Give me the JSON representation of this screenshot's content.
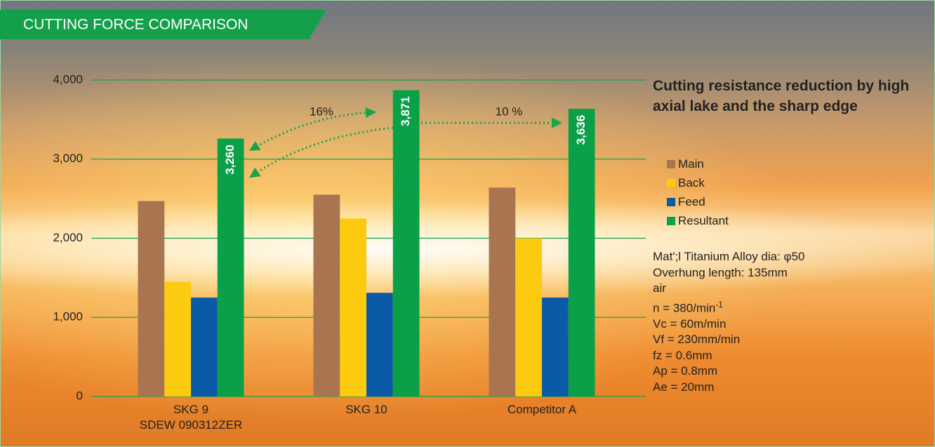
{
  "chart_data": {
    "type": "bar",
    "title": "CUTTING FORCE COMPARISON",
    "categories": [
      "SKG 9\nSDEW 090312ZER",
      "SKG 10",
      "Competitor A"
    ],
    "series": [
      {
        "name": "Main",
        "color": "#a87550",
        "values": [
          2470,
          2550,
          2640
        ]
      },
      {
        "name": "Back",
        "color": "#fccb10",
        "values": [
          1450,
          2250,
          2000
        ]
      },
      {
        "name": "Feed",
        "color": "#0b5aa8",
        "values": [
          1250,
          1310,
          1250
        ]
      },
      {
        "name": "Resultant",
        "color": "#0aa048",
        "values": [
          3260,
          3871,
          3636
        ],
        "value_labels": [
          "3,260",
          "3,871",
          "3,636"
        ]
      }
    ],
    "ylim": [
      0,
      4000
    ],
    "yticks": [
      0,
      {
        "value": 1000,
        "label": "1,000"
      },
      {
        "value": 2000,
        "label": "2,000"
      },
      {
        "value": 3000,
        "label": "3,000"
      },
      {
        "value": 4000,
        "label": "4,000"
      }
    ],
    "grid": true,
    "annotations": [
      "16%",
      "10 %"
    ],
    "legend_title": "Cutting resistance reduction by high axial lake and the sharp edge",
    "notes": [
      {
        "text": "Mat';l Titanium Alloy dia: φ50"
      },
      {
        "text": "Overhung length: 135mm"
      },
      {
        "text": "air"
      },
      {
        "text": "n = 380/min",
        "sup": "-1"
      },
      {
        "text": "Vc = 60m/min"
      },
      {
        "text": "Vf = 230mm/min"
      },
      {
        "text": "fz = 0.6mm"
      },
      {
        "text": "Ap = 0.8mm"
      },
      {
        "text": "Ae = 20mm"
      }
    ]
  }
}
